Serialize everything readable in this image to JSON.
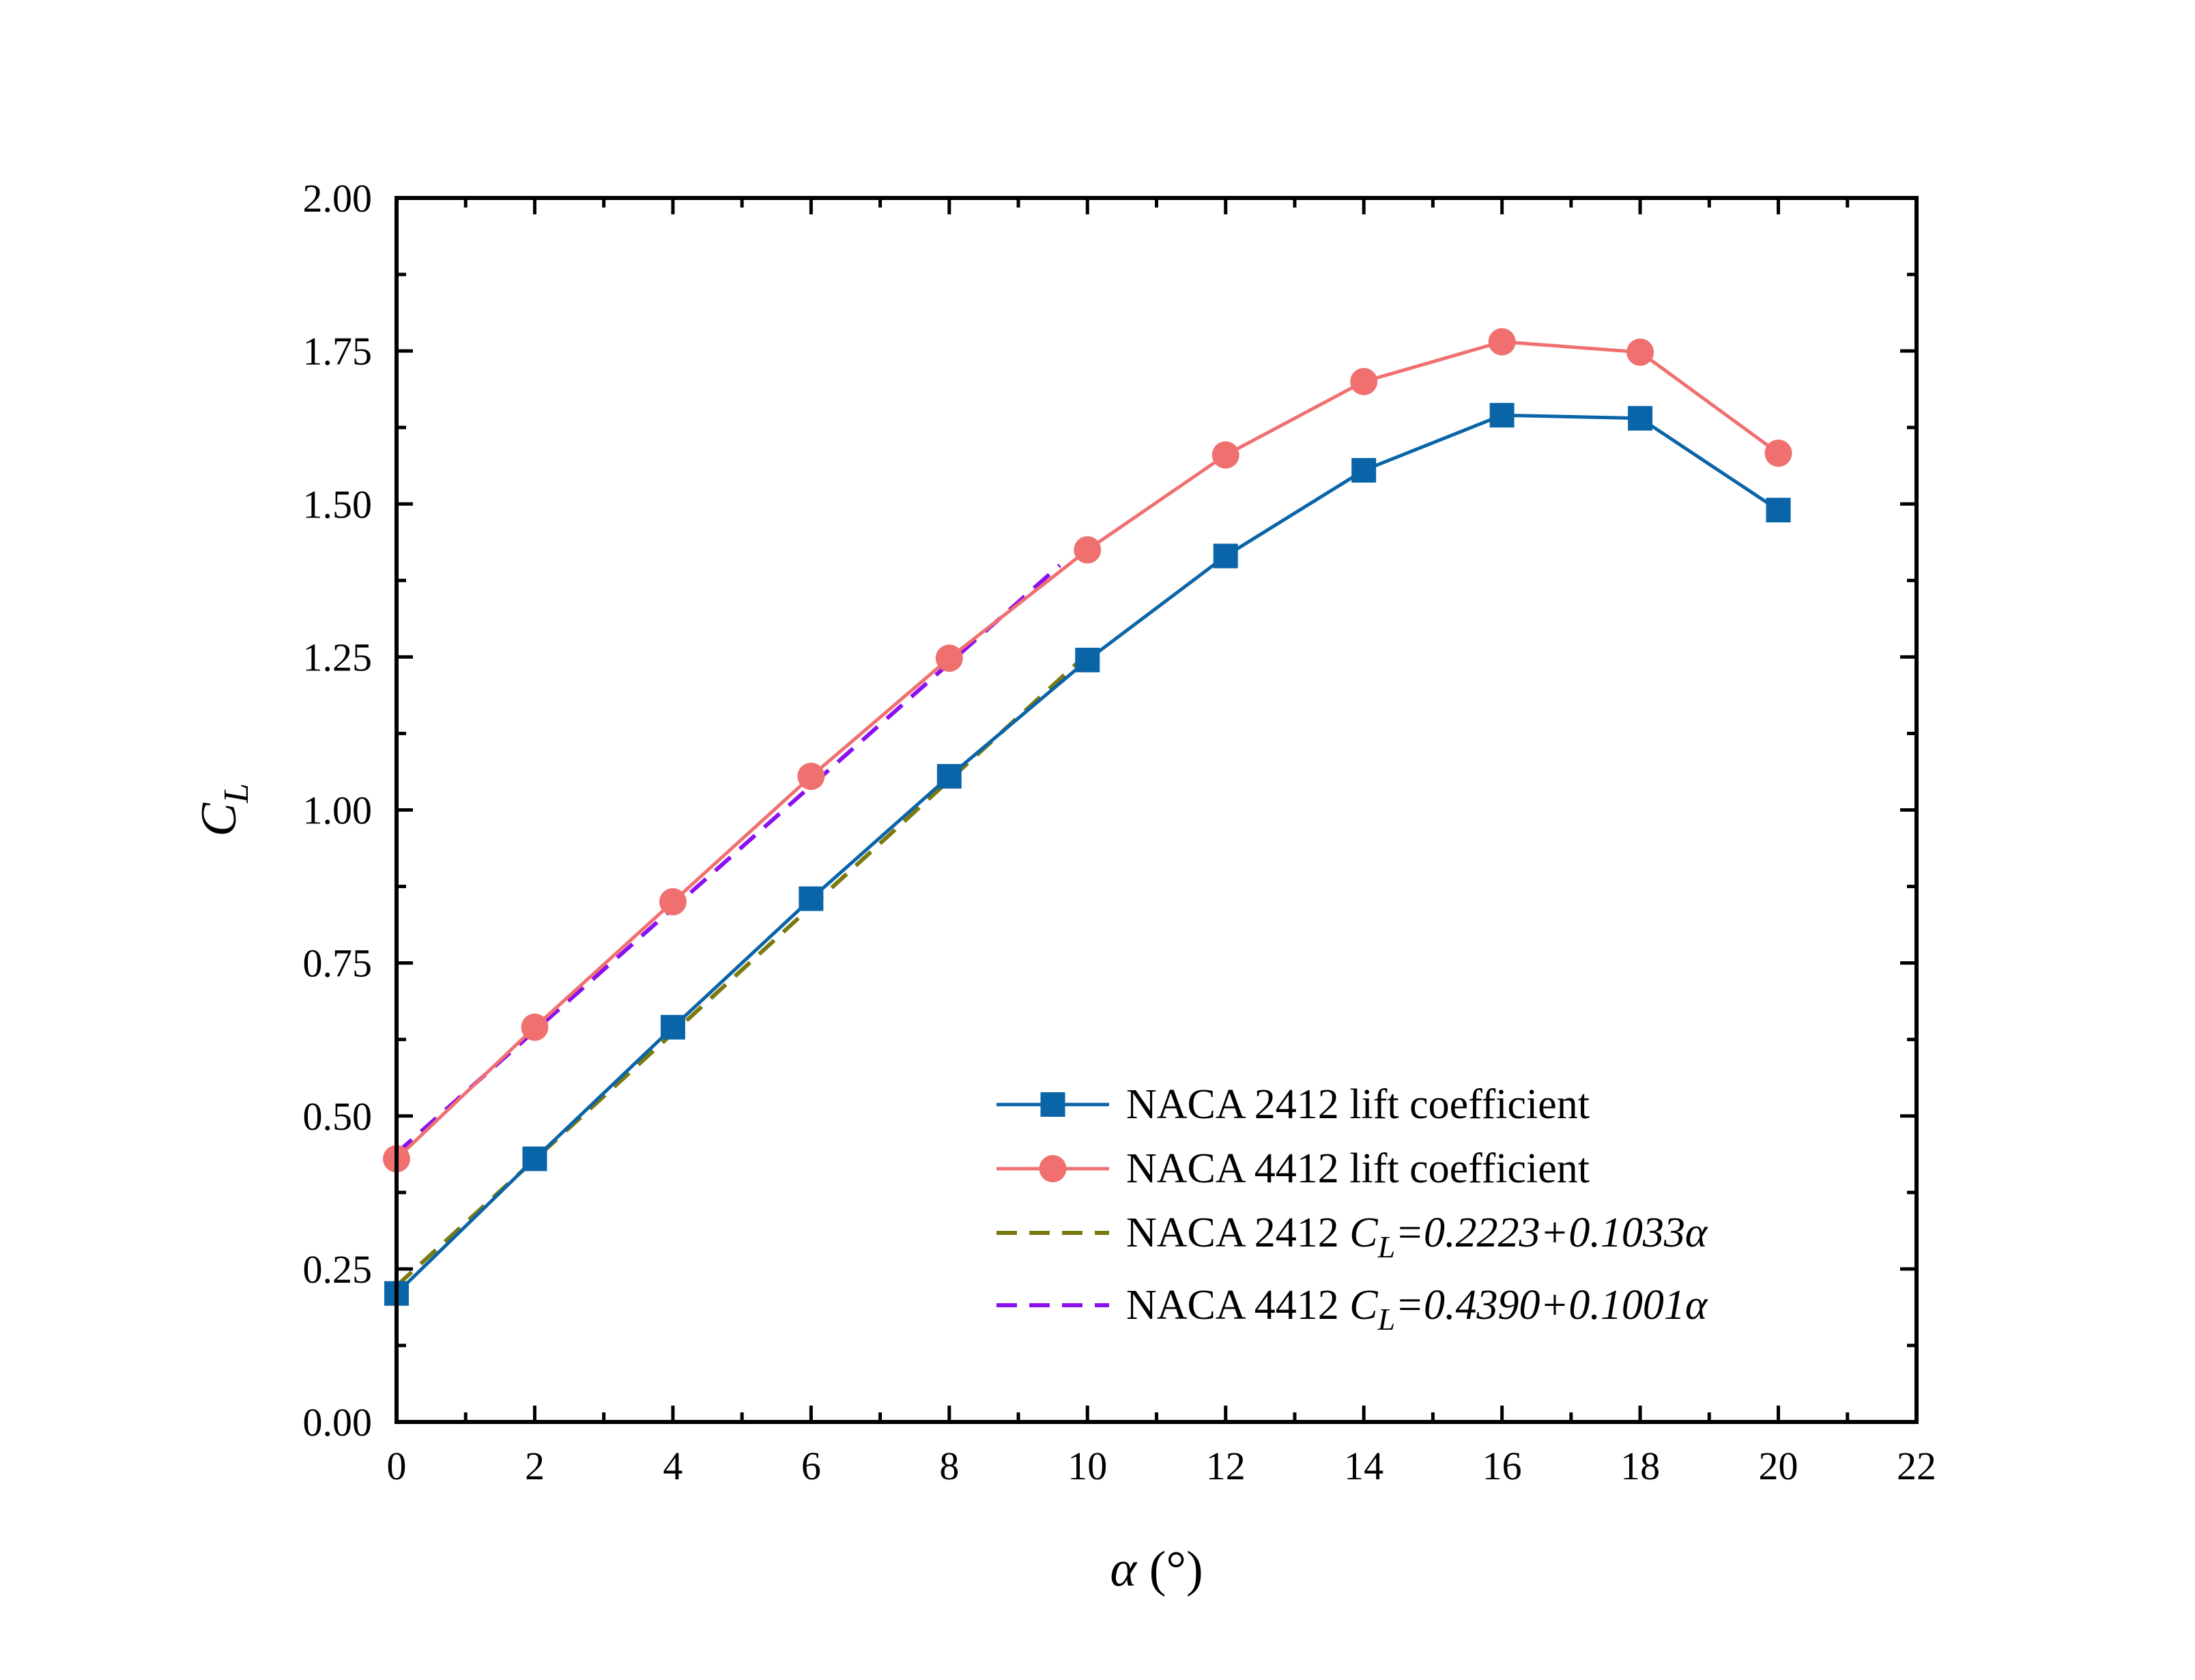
{
  "chart_data": {
    "type": "line",
    "title": "",
    "xlabel": {
      "symbol": "α",
      "unit": "(°)"
    },
    "ylabel": {
      "main": "C",
      "sub": "L"
    },
    "xlim": [
      0,
      22
    ],
    "ylim": [
      0,
      2
    ],
    "x_ticks": [
      "0",
      "2",
      "4",
      "6",
      "8",
      "10",
      "12",
      "14",
      "16",
      "18",
      "20",
      "22"
    ],
    "y_ticks": [
      "0.00",
      "0.25",
      "0.50",
      "0.75",
      "1.00",
      "1.25",
      "1.50",
      "1.75",
      "2.00"
    ],
    "grid": false,
    "legend_position": "bottom-right",
    "series": [
      {
        "id": "naca2412",
        "name": "NACA 2412 lift coefficient",
        "marker": "square",
        "color": "#0a64a8",
        "x": [
          0,
          2,
          4,
          6,
          8,
          10,
          12,
          14,
          16,
          18,
          20
        ],
        "y": [
          0.21,
          0.43,
          0.645,
          0.855,
          1.055,
          1.245,
          1.415,
          1.555,
          1.645,
          1.64,
          1.49
        ]
      },
      {
        "id": "naca4412",
        "name": "NACA 4412 lift coefficient",
        "marker": "circle",
        "color": "#f07070",
        "x": [
          0,
          2,
          4,
          6,
          8,
          10,
          12,
          14,
          16,
          18,
          20
        ],
        "y": [
          0.43,
          0.645,
          0.85,
          1.055,
          1.248,
          1.425,
          1.58,
          1.7,
          1.765,
          1.748,
          1.583
        ]
      }
    ],
    "fits": [
      {
        "id": "fit2412",
        "prefix": "NACA 2412 ",
        "cl_main": "C",
        "cl_sub": "L",
        "equation": "=0.2223+0.1033α",
        "intercept": 0.2223,
        "slope": 0.1033,
        "x_range": [
          0,
          10
        ],
        "color": "#7a7a10",
        "style": "dashed"
      },
      {
        "id": "fit4412",
        "prefix": "NACA 4412 ",
        "cl_main": "C",
        "cl_sub": "L",
        "equation": "=0.4390+0.1001α",
        "intercept": 0.439,
        "slope": 0.1001,
        "x_range": [
          0,
          9.6
        ],
        "color": "#8a10f0",
        "style": "dashed"
      }
    ]
  }
}
